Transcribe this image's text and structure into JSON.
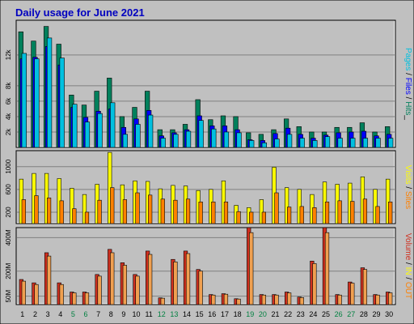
{
  "colors": {
    "page_bg": "#c0c0c0",
    "plot_bg": "#c0c0c0",
    "hits": "#00805c",
    "files": "#0000ff",
    "pages": "#00c0e0",
    "visits": "#ffff00",
    "sites": "#ff8000",
    "volume": "#d03020",
    "volume_in": "#f0a050",
    "title": "#0000c0",
    "weekend_label": "#008040"
  },
  "chart_data": [
    {
      "type": "bar",
      "title": "Daily usage for June 2021",
      "categories": [
        "1",
        "2",
        "3",
        "4",
        "5",
        "6",
        "7",
        "8",
        "9",
        "10",
        "11",
        "12",
        "13",
        "14",
        "15",
        "16",
        "17",
        "18",
        "19",
        "20",
        "21",
        "22",
        "23",
        "24",
        "25",
        "26",
        "27",
        "28",
        "29",
        "30"
      ],
      "weekend_days": [
        "5",
        "6",
        "12",
        "13",
        "19",
        "20",
        "26",
        "27"
      ],
      "ylabel": [
        "Pages",
        " / ",
        "Files",
        " / ",
        "Hits",
        "_"
      ],
      "ytick_labels": [
        "2k",
        "4k",
        "6k",
        "8k",
        "12k"
      ],
      "ytick_values": [
        2000,
        4000,
        6000,
        8000,
        12000
      ],
      "ylim": [
        0,
        16500
      ],
      "series": [
        {
          "name": "Hits",
          "values": [
            15000,
            13800,
            15700,
            13400,
            6800,
            5500,
            7300,
            9000,
            4000,
            5200,
            7300,
            2300,
            2300,
            3000,
            6200,
            3600,
            4100,
            4000,
            1900,
            1700,
            2300,
            3700,
            2700,
            2000,
            2000,
            2600,
            2600,
            3200,
            2000,
            2700
          ]
        },
        {
          "name": "Files",
          "values": [
            11500,
            11700,
            13100,
            10700,
            5200,
            3900,
            4700,
            5000,
            2600,
            3700,
            4800,
            1500,
            1900,
            2300,
            4100,
            2800,
            2800,
            2300,
            1000,
            900,
            1800,
            2500,
            1700,
            1200,
            1600,
            1900,
            2000,
            2100,
            1500,
            1700
          ]
        },
        {
          "name": "Pages",
          "values": [
            12200,
            11500,
            14200,
            11600,
            5600,
            3300,
            4400,
            5800,
            1700,
            3000,
            4200,
            1200,
            1700,
            2100,
            3500,
            2400,
            2000,
            1900,
            900,
            600,
            1100,
            1700,
            1200,
            900,
            1400,
            1200,
            1200,
            1200,
            1200,
            1200
          ]
        }
      ]
    },
    {
      "type": "bar",
      "ylabel": [
        "Visits",
        " / ",
        "Sites"
      ],
      "ytick_labels": [
        "200",
        "600",
        "1000"
      ],
      "ytick_values": [
        200,
        600,
        1000
      ],
      "ylim": [
        0,
        1280
      ],
      "series": [
        {
          "name": "Visits",
          "values": [
            780,
            880,
            880,
            790,
            620,
            510,
            690,
            1250,
            680,
            750,
            740,
            610,
            670,
            660,
            580,
            600,
            750,
            320,
            280,
            420,
            990,
            630,
            600,
            510,
            730,
            690,
            710,
            820,
            600,
            780
          ]
        },
        {
          "name": "Sites",
          "values": [
            420,
            490,
            450,
            400,
            260,
            200,
            410,
            630,
            420,
            540,
            500,
            430,
            410,
            430,
            380,
            380,
            380,
            210,
            200,
            200,
            540,
            290,
            300,
            280,
            380,
            400,
            390,
            430,
            300,
            380
          ]
        }
      ]
    },
    {
      "type": "bar",
      "ylabel": [
        "Volume",
        " / ",
        "IN",
        " / ",
        "OUT"
      ],
      "ytick_labels": [
        "50M",
        "200M",
        "400M"
      ],
      "ytick_values": [
        50,
        200,
        400
      ],
      "ylim": [
        0,
        460
      ],
      "series": [
        {
          "name": "Volume",
          "values": [
            150,
            130,
            310,
            130,
            75,
            75,
            180,
            330,
            250,
            180,
            320,
            40,
            270,
            320,
            210,
            60,
            65,
            35,
            460,
            60,
            60,
            75,
            45,
            260,
            460,
            60,
            135,
            220,
            60,
            75
          ]
        },
        {
          "name": "IN",
          "values": [
            140,
            120,
            290,
            120,
            70,
            70,
            170,
            310,
            235,
            170,
            300,
            38,
            255,
            305,
            200,
            57,
            62,
            33,
            430,
            57,
            57,
            70,
            42,
            245,
            430,
            57,
            128,
            210,
            57,
            70
          ]
        }
      ]
    }
  ]
}
